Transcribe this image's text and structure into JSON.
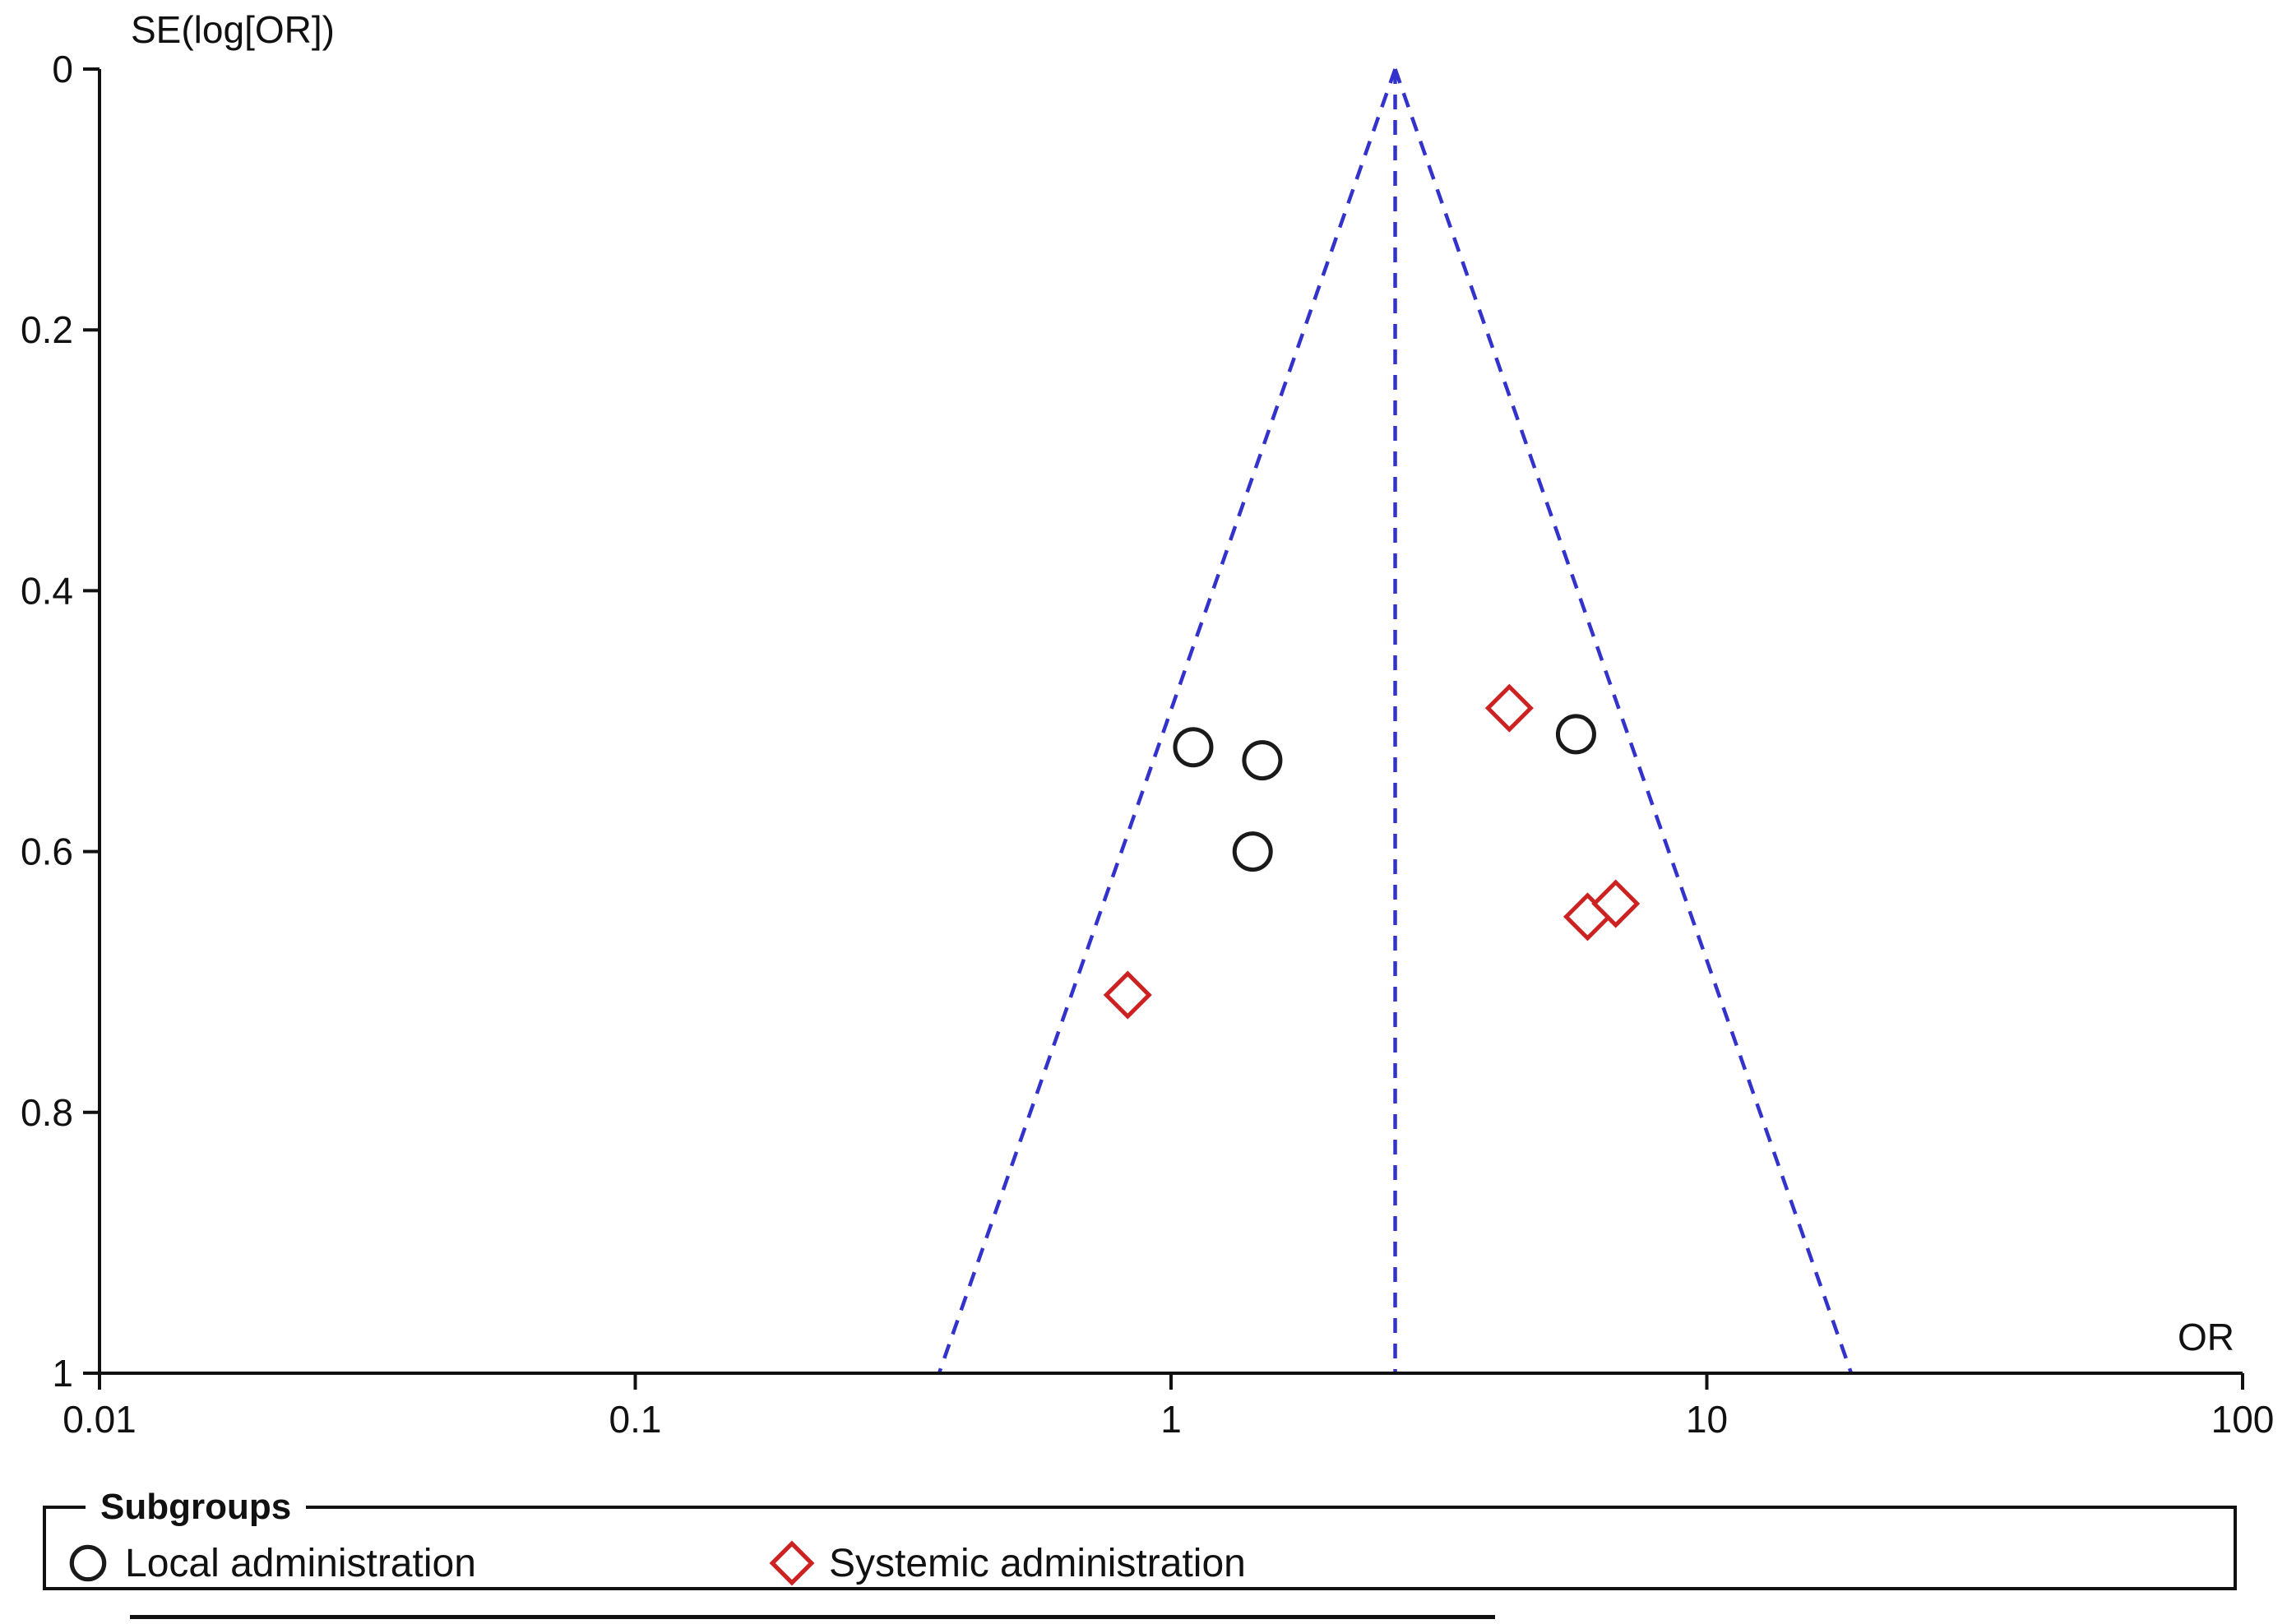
{
  "chart_data": {
    "type": "scatter",
    "title": "",
    "xlabel": "OR",
    "ylabel": "SE(log[OR])",
    "x_scale": "log",
    "x_range": [
      0.01,
      100
    ],
    "x_ticks": [
      "0.01",
      "0.1",
      "1",
      "10",
      "100"
    ],
    "y_range": [
      0,
      1
    ],
    "y_inverted": true,
    "y_ticks": [
      "0",
      "0.2",
      "0.4",
      "0.6",
      "0.8",
      "1"
    ],
    "grid": false,
    "legend_position": "bottom",
    "funnel": {
      "center_or": 2.62,
      "ci_multiplier": 1.96,
      "line_color": "#3333cc",
      "line_style": "dashed"
    },
    "series": [
      {
        "name": "Local administration",
        "marker": "circle",
        "color": "#1a1a1a",
        "points": [
          {
            "or": 1.1,
            "se": 0.52
          },
          {
            "or": 1.48,
            "se": 0.53
          },
          {
            "or": 1.42,
            "se": 0.6
          },
          {
            "or": 5.7,
            "se": 0.51
          }
        ]
      },
      {
        "name": "Systemic administration",
        "marker": "diamond",
        "color": "#cc2222",
        "points": [
          {
            "or": 4.28,
            "se": 0.49
          },
          {
            "or": 0.83,
            "se": 0.71
          },
          {
            "or": 5.99,
            "se": 0.65
          },
          {
            "or": 6.76,
            "se": 0.64
          }
        ]
      }
    ]
  },
  "axis_labels": {
    "x": "OR",
    "y": "SE(log[OR])"
  },
  "legend": {
    "title": "Subgroups",
    "items": [
      {
        "label": "Local administration",
        "marker": "circle",
        "color": "#1a1a1a"
      },
      {
        "label": "Systemic administration",
        "marker": "diamond",
        "color": "#cc2222"
      }
    ]
  },
  "colors": {
    "funnel_line": "#3333cc",
    "axis": "#111111",
    "local_marker": "#1a1a1a",
    "systemic_marker": "#cc2222",
    "background": "#ffffff"
  }
}
